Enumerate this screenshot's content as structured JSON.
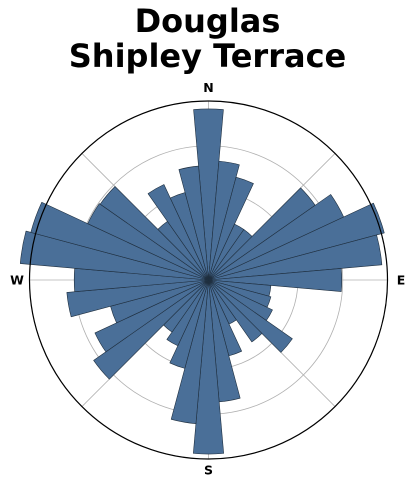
{
  "chart_data": {
    "type": "polar_bar",
    "title": [
      "Douglas",
      "Shipley Terrace"
    ],
    "direction_labels": [
      "N",
      "E",
      "S",
      "W"
    ],
    "bin_width_deg": 10,
    "directions_deg": [
      0,
      10,
      20,
      30,
      40,
      50,
      60,
      70,
      80,
      90,
      100,
      110,
      120,
      130,
      140,
      150,
      160,
      170,
      180,
      190,
      200,
      210,
      220,
      230,
      240,
      250,
      260,
      270,
      280,
      290,
      300,
      310,
      320,
      330,
      340,
      350
    ],
    "values": [
      172,
      120,
      107,
      62,
      62,
      131,
      150,
      183,
      175,
      134,
      63,
      65,
      71,
      103,
      76,
      49,
      79,
      123,
      175,
      145,
      92,
      73,
      64,
      141,
      126,
      102,
      143,
      135,
      190,
      185,
      134,
      133,
      72,
      106,
      91,
      115
    ],
    "rmax": 180,
    "r_grid": [
      45,
      90,
      135,
      180
    ],
    "angular_grid_deg": [
      0,
      45,
      90,
      135,
      180,
      225,
      270,
      315
    ],
    "grid": true,
    "colors": {
      "bar_fill": "#4a6f98",
      "bar_edge": "#1f2f3f",
      "grid": "#b0b0b0",
      "frame": "#000000"
    }
  }
}
